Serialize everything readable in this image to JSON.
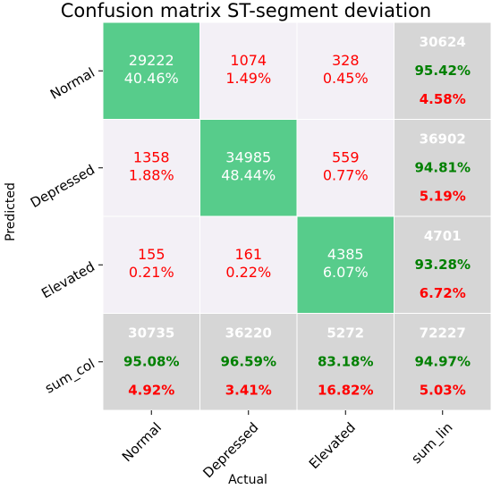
{
  "chart_data": {
    "type": "heatmap",
    "title": "Confusion matrix ST-segment deviation",
    "xlabel": "Actual",
    "ylabel": "Predicted",
    "x_ticks": [
      "Normal",
      "Depressed",
      "Elevated",
      "sum_lin"
    ],
    "y_ticks": [
      "Normal",
      "Depressed",
      "Elevated",
      "sum_col"
    ],
    "matrix": [
      [
        {
          "count": "29222",
          "pct": "40.46%"
        },
        {
          "count": "1074",
          "pct": "1.49%"
        },
        {
          "count": "328",
          "pct": "0.45%"
        }
      ],
      [
        {
          "count": "1358",
          "pct": "1.88%"
        },
        {
          "count": "34985",
          "pct": "48.44%"
        },
        {
          "count": "559",
          "pct": "0.77%"
        }
      ],
      [
        {
          "count": "155",
          "pct": "0.21%"
        },
        {
          "count": "161",
          "pct": "0.22%"
        },
        {
          "count": "4385",
          "pct": "6.07%"
        }
      ]
    ],
    "row_sums": [
      {
        "total": "30624",
        "correct": "95.42%",
        "error": "4.58%"
      },
      {
        "total": "36902",
        "correct": "94.81%",
        "error": "5.19%"
      },
      {
        "total": "4701",
        "correct": "93.28%",
        "error": "6.72%"
      }
    ],
    "col_sums": [
      {
        "total": "30735",
        "correct": "95.08%",
        "error": "4.92%"
      },
      {
        "total": "36220",
        "correct": "96.59%",
        "error": "3.41%"
      },
      {
        "total": "5272",
        "correct": "83.18%",
        "error": "16.82%"
      }
    ],
    "grand_total": {
      "total": "72227",
      "correct": "94.97%",
      "error": "5.03%"
    },
    "colors": {
      "diagonal": "#57cc8b",
      "off_diagonal": "#f3f0f6",
      "summary": "#d6d6d6",
      "off_text": "#ff0000",
      "diag_text": "#ffffff",
      "correct_text": "#008000",
      "error_text": "#ff0000",
      "total_text": "#ffffff"
    }
  }
}
